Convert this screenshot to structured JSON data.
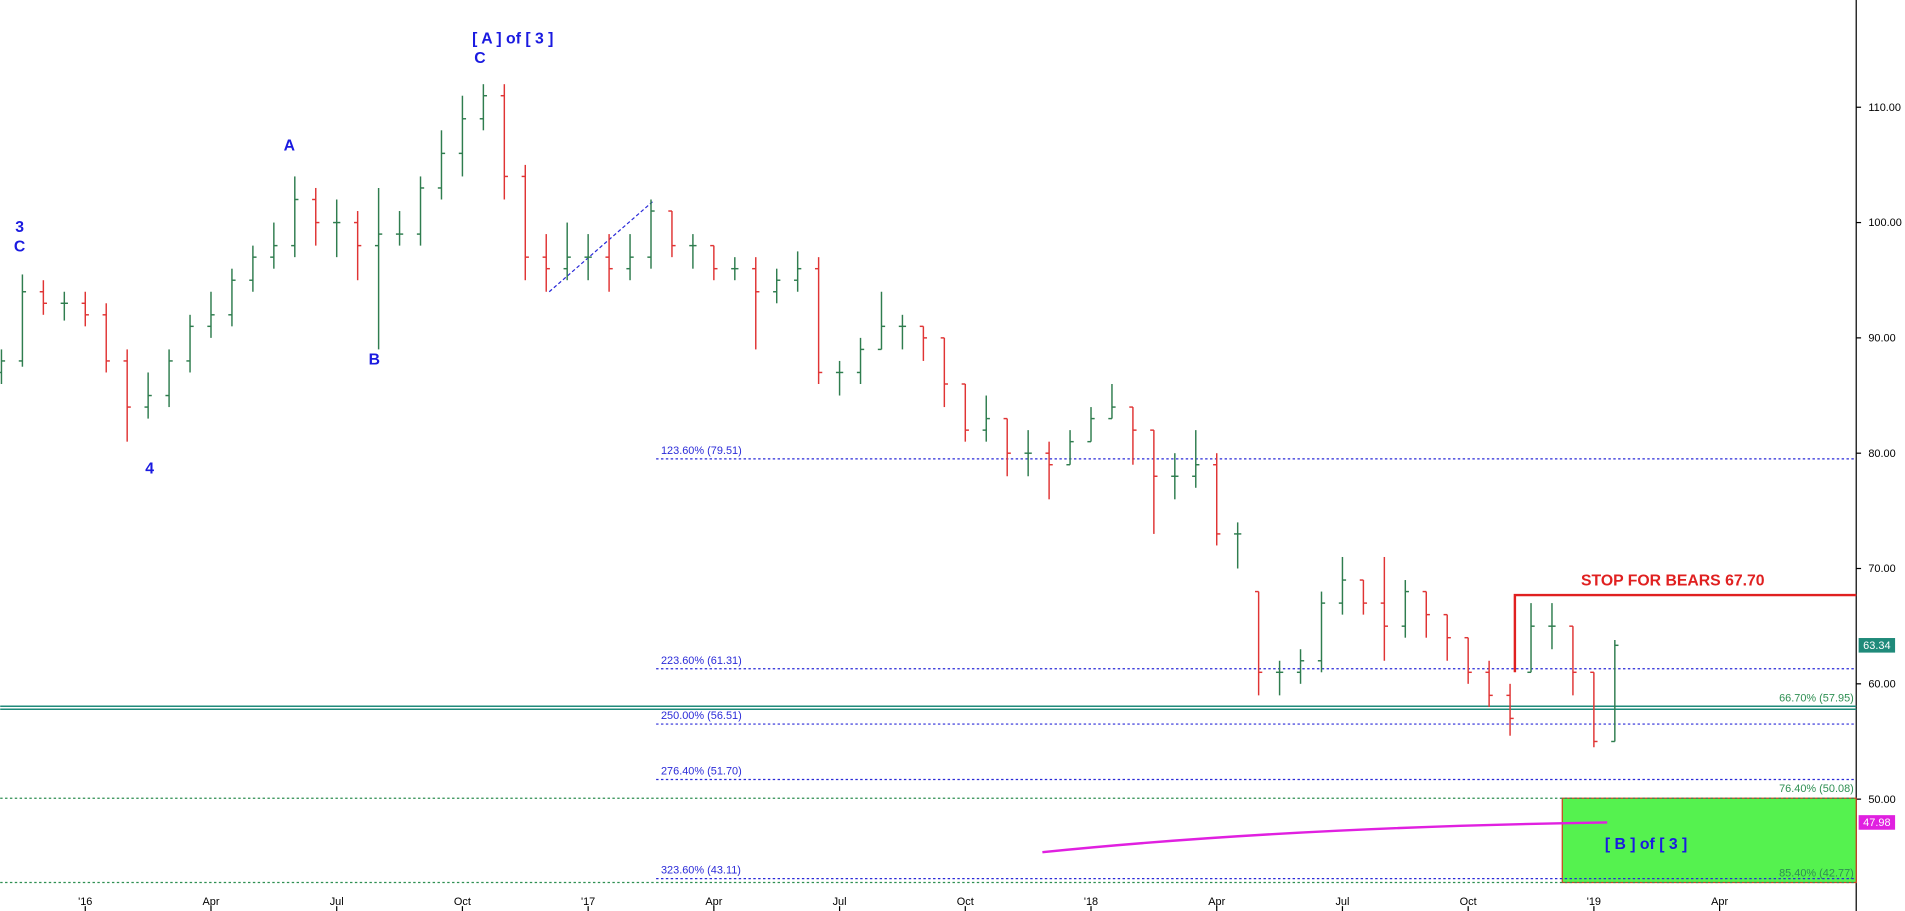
{
  "chart_data": {
    "type": "ohlc",
    "x": [
      -2,
      -1.5,
      -1,
      -0.5,
      0,
      0.5,
      1,
      1.5,
      2,
      2.5,
      3,
      3.5,
      4,
      4.5,
      5,
      5.5,
      6,
      6.5,
      7,
      7.5,
      8,
      8.5,
      9,
      9.5,
      10,
      10.5,
      11,
      11.5,
      12,
      12.5,
      13,
      13.5,
      14,
      14.5,
      15,
      15.5,
      16,
      16.5,
      17,
      17.5,
      18,
      18.5,
      19,
      19.5,
      20,
      20.5,
      21,
      21.5,
      22,
      22.5,
      23,
      23.5,
      24,
      24.5,
      25,
      25.5,
      26,
      26.5,
      27,
      27.5,
      28,
      28.5,
      29,
      29.5,
      30,
      30.5,
      31,
      31.5,
      32,
      32.5,
      33,
      33.5,
      34,
      34.5,
      35,
      35.5,
      36,
      36.5
    ],
    "open": [
      87,
      88,
      94,
      93,
      93,
      92,
      88,
      84,
      85,
      88,
      91,
      92,
      95,
      97,
      98,
      102,
      100,
      100,
      98,
      99,
      99,
      103,
      106,
      109,
      111,
      104,
      97,
      96,
      97,
      97,
      96,
      97,
      101,
      98,
      98,
      96,
      96,
      94,
      95,
      96,
      87,
      87,
      89,
      91,
      91,
      90,
      86,
      82,
      83,
      80,
      80,
      79,
      81,
      83,
      84,
      82,
      78,
      78,
      79,
      73,
      68,
      61,
      61,
      62,
      67,
      69,
      67,
      65,
      68,
      66,
      64,
      61,
      59,
      61,
      65,
      65,
      61,
      55
    ],
    "high": [
      89,
      95.5,
      95,
      94,
      94,
      93,
      89,
      87,
      89,
      92,
      94,
      96,
      98,
      100,
      104,
      103,
      102,
      101,
      103,
      101,
      104,
      108,
      111,
      112,
      112,
      105,
      99,
      100,
      99,
      99,
      99,
      102,
      101,
      99,
      98,
      97,
      97,
      96,
      97.5,
      97,
      88,
      90,
      94,
      92,
      91,
      90,
      86,
      85,
      83,
      82,
      81,
      82,
      84,
      86,
      84,
      82,
      80,
      82,
      80,
      74,
      68,
      62,
      63,
      68,
      71,
      69,
      71,
      69,
      68,
      66,
      64,
      62,
      60,
      67,
      67,
      65,
      61,
      63.8
    ],
    "low": [
      86,
      87.5,
      92,
      91.5,
      91,
      87,
      81,
      83,
      84,
      87,
      90,
      91,
      94,
      96,
      97,
      98,
      97,
      95,
      89,
      98,
      98,
      102,
      104,
      108,
      102,
      95,
      94,
      95,
      95,
      94,
      95,
      96,
      97,
      96,
      95,
      95,
      89,
      93,
      94,
      86,
      85,
      86,
      89,
      89,
      88,
      84,
      81,
      81,
      78,
      78,
      76,
      79,
      81,
      83,
      79,
      73,
      76,
      77,
      72,
      70,
      59,
      59,
      60,
      61,
      66,
      66,
      62,
      64,
      64,
      62,
      60,
      58,
      55.5,
      61,
      63,
      59,
      54.5,
      55
    ],
    "close": [
      88,
      94,
      93,
      93,
      92,
      88,
      84,
      85,
      88,
      91,
      92,
      95,
      97,
      98,
      102,
      100,
      100,
      98,
      99,
      99,
      103,
      106,
      109,
      111,
      104,
      97,
      96,
      97,
      97,
      96,
      97,
      101,
      98,
      98,
      96,
      96,
      94,
      95,
      96,
      87,
      87,
      89,
      91,
      91,
      90,
      86,
      82,
      83,
      80,
      80,
      79,
      81,
      83,
      84,
      82,
      78,
      78,
      79,
      73,
      73,
      61,
      61,
      62,
      67,
      69,
      67,
      65,
      68,
      66,
      64,
      61,
      59,
      57,
      65,
      65,
      61,
      55,
      63.34
    ],
    "up_color": "#2f7d4f",
    "down_color": "#e03434",
    "xlim": [
      -2.03,
      42.26
    ],
    "ylim": [
      40.3,
      119.3
    ],
    "xticks": [
      {
        "value": 0,
        "label": "'16"
      },
      {
        "value": 3,
        "label": "Apr"
      },
      {
        "value": 6,
        "label": "Jul"
      },
      {
        "value": 9,
        "label": "Oct"
      },
      {
        "value": 12,
        "label": "'17"
      },
      {
        "value": 15,
        "label": "Apr"
      },
      {
        "value": 18,
        "label": "Jul"
      },
      {
        "value": 21,
        "label": "Oct"
      },
      {
        "value": 24,
        "label": "'18"
      },
      {
        "value": 27,
        "label": "Apr"
      },
      {
        "value": 30,
        "label": "Jul"
      },
      {
        "value": 33,
        "label": "Oct"
      },
      {
        "value": 36,
        "label": "'19"
      },
      {
        "value": 39,
        "label": "Apr"
      }
    ],
    "yticks": [
      {
        "value": 110,
        "label": "110.00"
      },
      {
        "value": 100,
        "label": "100.00"
      },
      {
        "value": 90,
        "label": "90.00"
      },
      {
        "value": 80,
        "label": "80.00"
      },
      {
        "value": 70,
        "label": "70.00"
      },
      {
        "value": 60,
        "label": "60.00"
      },
      {
        "value": 50,
        "label": "50.00"
      }
    ],
    "extension_levels": [
      {
        "label": "123.60% (79.51)",
        "value": 79.51
      },
      {
        "label": "223.60% (61.31)",
        "value": 61.31
      },
      {
        "label": "250.00% (56.51)",
        "value": 56.51
      },
      {
        "label": "276.40% (51.70)",
        "value": 51.7
      },
      {
        "label": "323.60% (43.11)",
        "value": 43.11
      }
    ],
    "retracement_levels": [
      {
        "label": "66.70% (57.95)",
        "value": 57.95
      },
      {
        "label": "76.40% (50.08)",
        "value": 50.08
      },
      {
        "label": "85.40% (42.77)",
        "value": 42.77
      }
    ],
    "stop": {
      "label": "STOP FOR BEARS 67.70",
      "value": 67.7
    },
    "target_box": {
      "label": "[ B ] of [ 3 ]"
    },
    "moving_average": {
      "values": [
        45.4,
        47.98
      ],
      "label": "47.98"
    },
    "trend_line": {
      "values": [
        94,
        101.8
      ]
    },
    "wave_labels": [
      "3",
      "C",
      "4",
      "A",
      "B",
      "[ A ] of [ 3 ]",
      "C"
    ]
  }
}
